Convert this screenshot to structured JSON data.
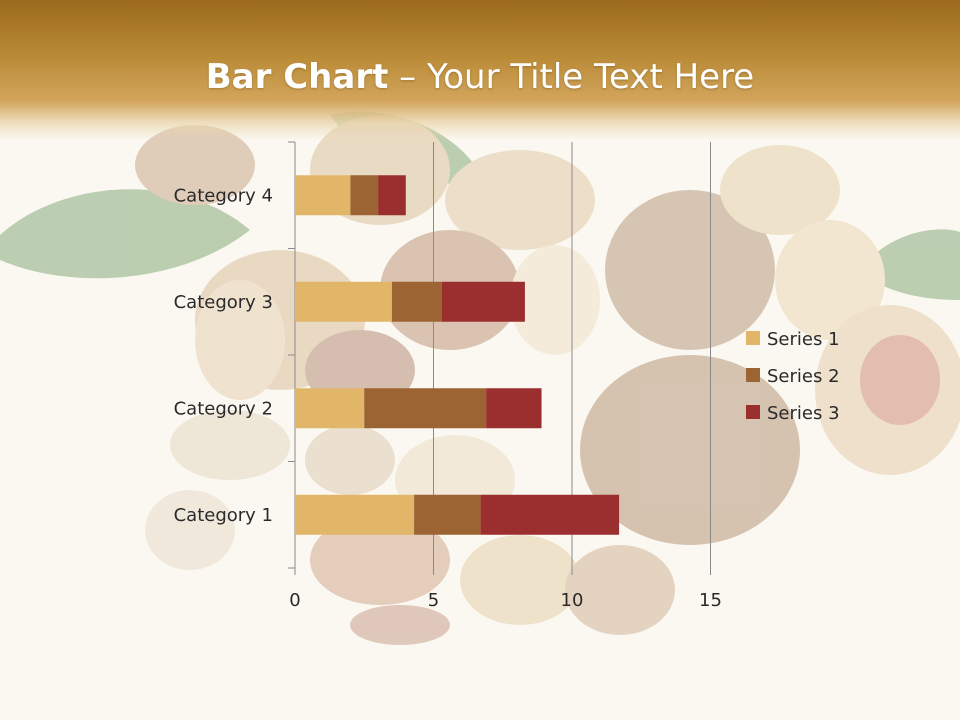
{
  "slide": {
    "title_bold": "Bar Chart",
    "title_rest": " – Your Title Text Here"
  },
  "colors": {
    "series_1": "#e2b668",
    "series_2": "#9b6432",
    "series_3": "#9b2f2f",
    "header_dark": "#9b6a1d",
    "header_light": "#d2a55c"
  },
  "background": {
    "image": "mixed nuts photo (peanuts, walnuts, hazelnuts, almonds, pistachios) with leaves"
  },
  "chart_data": {
    "type": "bar",
    "orientation": "horizontal",
    "stacked": true,
    "categories": [
      "Category 1",
      "Category 2",
      "Category 3",
      "Category 4"
    ],
    "series": [
      {
        "name": "Series 1",
        "values": [
          4.3,
          2.5,
          3.5,
          2
        ]
      },
      {
        "name": "Series 2",
        "values": [
          2.4,
          4.4,
          1.8,
          1
        ]
      },
      {
        "name": "Series 3",
        "values": [
          5,
          2,
          3,
          1
        ]
      }
    ],
    "xlim": [
      0,
      15
    ],
    "xticks": [
      "0",
      "5",
      "10",
      "15"
    ],
    "grid": true,
    "legend": "right"
  }
}
